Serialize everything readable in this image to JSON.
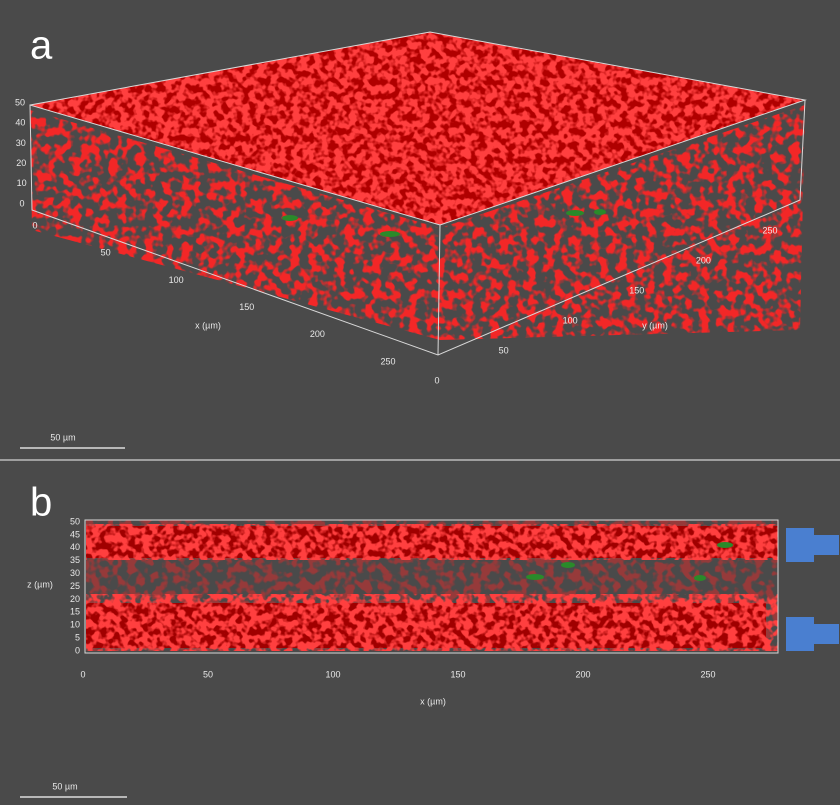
{
  "panel_a": {
    "label": "a",
    "x_axis": {
      "title": "x (µm)",
      "ticks": [
        0,
        50,
        100,
        150,
        200,
        250
      ]
    },
    "y_axis": {
      "title": "y (µm)",
      "ticks": [
        0,
        50,
        100,
        150,
        200,
        250
      ]
    },
    "z_axis": {
      "ticks": [
        50,
        40,
        30,
        20,
        10,
        0
      ]
    },
    "scale_bar": "50 µm"
  },
  "panel_b": {
    "label": "b",
    "x_axis": {
      "title": "x (µm)",
      "ticks": [
        0,
        50,
        100,
        150,
        200,
        250
      ]
    },
    "z_axis": {
      "title": "z (µm)",
      "ticks": [
        50,
        45,
        40,
        35,
        30,
        25,
        20,
        15,
        10,
        5,
        0
      ]
    },
    "scale_bar": "50 µm"
  }
}
